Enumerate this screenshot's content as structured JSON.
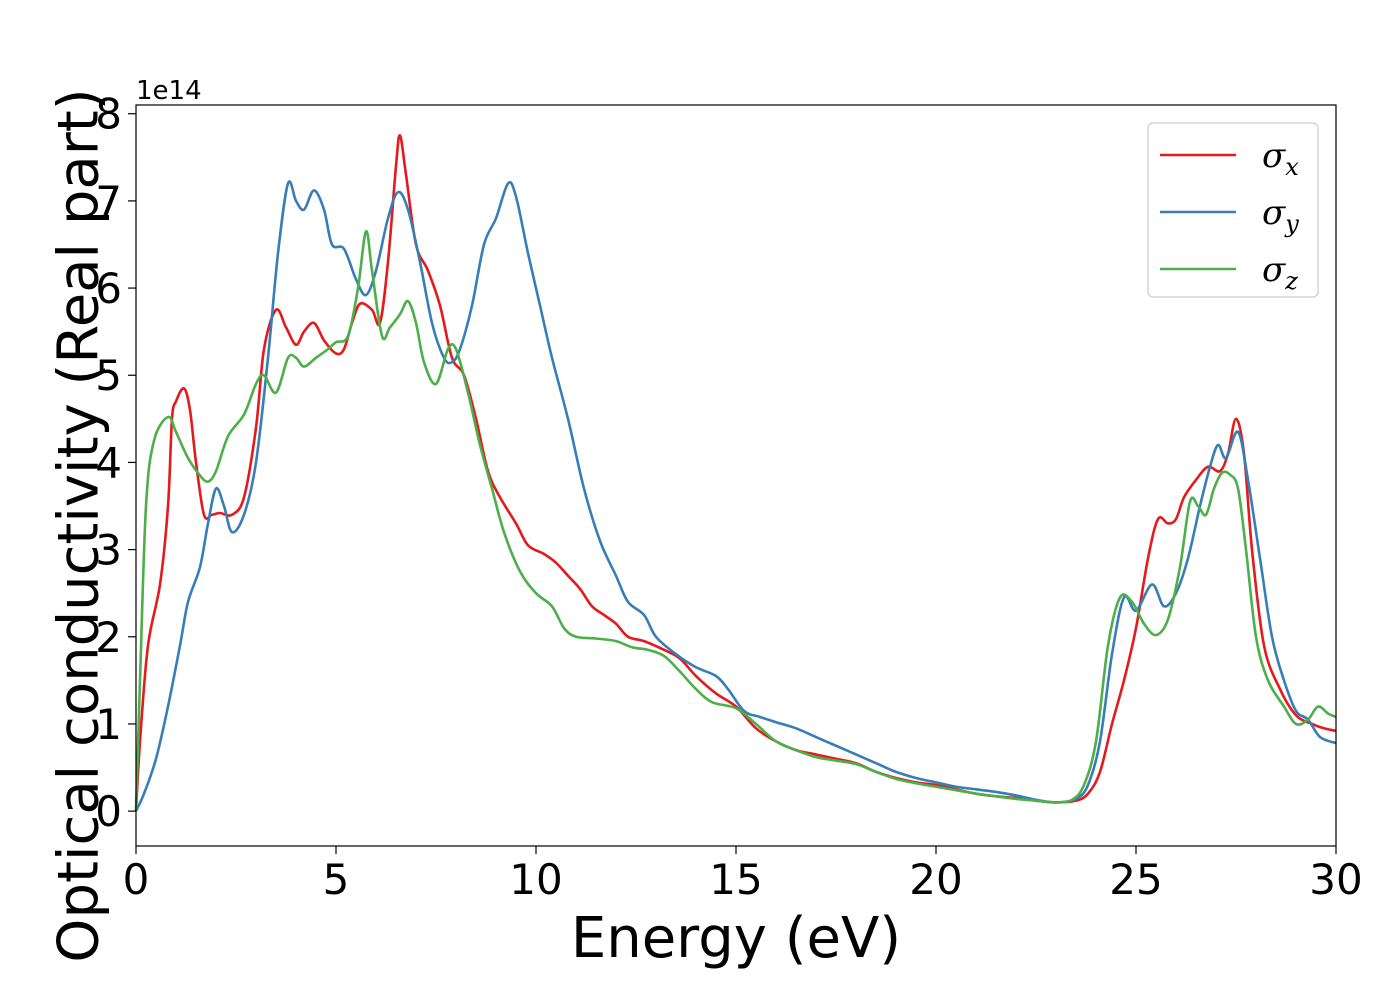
{
  "chart_data": {
    "type": "line",
    "xlabel": "Energy (eV)",
    "ylabel": "Optical conductivity (Real part)",
    "y_offset_text": "1e14",
    "xlim": [
      0,
      30
    ],
    "ylim": [
      -0.4,
      8.1
    ],
    "xticks": [
      0,
      5,
      10,
      15,
      20,
      25,
      30
    ],
    "yticks": [
      0,
      1,
      2,
      3,
      4,
      5,
      6,
      7,
      8
    ],
    "grid": false,
    "legend_position": "top-right",
    "series": [
      {
        "name": "σx",
        "symbol": "σ",
        "subscript": "x",
        "color": "#e41a1c",
        "points": [
          [
            0,
            0
          ],
          [
            0.1,
            0.8
          ],
          [
            0.3,
            1.9
          ],
          [
            0.6,
            2.6
          ],
          [
            0.8,
            3.5
          ],
          [
            0.9,
            4.5
          ],
          [
            1.0,
            4.7
          ],
          [
            1.2,
            4.85
          ],
          [
            1.35,
            4.6
          ],
          [
            1.5,
            4.0
          ],
          [
            1.7,
            3.4
          ],
          [
            1.9,
            3.4
          ],
          [
            2.1,
            3.42
          ],
          [
            2.4,
            3.4
          ],
          [
            2.7,
            3.6
          ],
          [
            3.0,
            4.4
          ],
          [
            3.2,
            5.3
          ],
          [
            3.5,
            5.75
          ],
          [
            3.75,
            5.55
          ],
          [
            4.0,
            5.35
          ],
          [
            4.2,
            5.5
          ],
          [
            4.45,
            5.6
          ],
          [
            4.7,
            5.4
          ],
          [
            5.0,
            5.25
          ],
          [
            5.2,
            5.3
          ],
          [
            5.4,
            5.6
          ],
          [
            5.6,
            5.82
          ],
          [
            5.9,
            5.75
          ],
          [
            6.1,
            5.6
          ],
          [
            6.3,
            6.3
          ],
          [
            6.5,
            7.4
          ],
          [
            6.6,
            7.75
          ],
          [
            6.75,
            7.3
          ],
          [
            7.0,
            6.5
          ],
          [
            7.3,
            6.2
          ],
          [
            7.6,
            5.8
          ],
          [
            7.9,
            5.2
          ],
          [
            8.2,
            5.0
          ],
          [
            8.5,
            4.5
          ],
          [
            8.8,
            3.9
          ],
          [
            9.1,
            3.6
          ],
          [
            9.5,
            3.3
          ],
          [
            9.8,
            3.05
          ],
          [
            10.2,
            2.95
          ],
          [
            10.5,
            2.85
          ],
          [
            10.8,
            2.7
          ],
          [
            11.1,
            2.55
          ],
          [
            11.4,
            2.35
          ],
          [
            11.7,
            2.25
          ],
          [
            12.0,
            2.15
          ],
          [
            12.3,
            2.0
          ],
          [
            12.7,
            1.95
          ],
          [
            13.2,
            1.85
          ],
          [
            13.6,
            1.75
          ],
          [
            14.0,
            1.55
          ],
          [
            14.5,
            1.35
          ],
          [
            15.0,
            1.2
          ],
          [
            15.5,
            0.95
          ],
          [
            16.0,
            0.8
          ],
          [
            16.5,
            0.7
          ],
          [
            17.0,
            0.65
          ],
          [
            17.5,
            0.6
          ],
          [
            18.0,
            0.55
          ],
          [
            18.5,
            0.45
          ],
          [
            19.0,
            0.38
          ],
          [
            19.5,
            0.33
          ],
          [
            20.0,
            0.3
          ],
          [
            20.5,
            0.25
          ],
          [
            21.0,
            0.2
          ],
          [
            21.5,
            0.17
          ],
          [
            22.0,
            0.15
          ],
          [
            22.5,
            0.12
          ],
          [
            23.0,
            0.1
          ],
          [
            23.5,
            0.12
          ],
          [
            23.8,
            0.2
          ],
          [
            24.1,
            0.45
          ],
          [
            24.4,
            1.0
          ],
          [
            24.7,
            1.5
          ],
          [
            25.0,
            2.1
          ],
          [
            25.3,
            2.9
          ],
          [
            25.55,
            3.35
          ],
          [
            25.8,
            3.3
          ],
          [
            26.0,
            3.35
          ],
          [
            26.2,
            3.6
          ],
          [
            26.5,
            3.8
          ],
          [
            26.8,
            3.95
          ],
          [
            27.1,
            3.9
          ],
          [
            27.3,
            4.1
          ],
          [
            27.5,
            4.5
          ],
          [
            27.7,
            4.1
          ],
          [
            27.9,
            3.0
          ],
          [
            28.2,
            1.9
          ],
          [
            28.6,
            1.4
          ],
          [
            29.0,
            1.1
          ],
          [
            29.4,
            1.0
          ],
          [
            29.7,
            0.95
          ],
          [
            30.0,
            0.92
          ]
        ]
      },
      {
        "name": "σy",
        "symbol": "σ",
        "subscript": "y",
        "color": "#377eb8",
        "points": [
          [
            0,
            0
          ],
          [
            0.2,
            0.2
          ],
          [
            0.5,
            0.6
          ],
          [
            0.8,
            1.2
          ],
          [
            1.1,
            1.9
          ],
          [
            1.3,
            2.4
          ],
          [
            1.6,
            2.8
          ],
          [
            1.8,
            3.3
          ],
          [
            2.0,
            3.7
          ],
          [
            2.2,
            3.5
          ],
          [
            2.4,
            3.2
          ],
          [
            2.7,
            3.4
          ],
          [
            3.0,
            4.0
          ],
          [
            3.3,
            5.2
          ],
          [
            3.55,
            6.4
          ],
          [
            3.8,
            7.2
          ],
          [
            4.0,
            7.0
          ],
          [
            4.2,
            6.9
          ],
          [
            4.45,
            7.12
          ],
          [
            4.7,
            6.9
          ],
          [
            4.9,
            6.5
          ],
          [
            5.2,
            6.45
          ],
          [
            5.5,
            6.1
          ],
          [
            5.75,
            5.92
          ],
          [
            6.0,
            6.2
          ],
          [
            6.3,
            6.8
          ],
          [
            6.55,
            7.1
          ],
          [
            6.8,
            6.9
          ],
          [
            7.1,
            6.3
          ],
          [
            7.4,
            5.6
          ],
          [
            7.7,
            5.2
          ],
          [
            7.9,
            5.15
          ],
          [
            8.1,
            5.3
          ],
          [
            8.4,
            5.8
          ],
          [
            8.7,
            6.5
          ],
          [
            9.0,
            6.8
          ],
          [
            9.3,
            7.2
          ],
          [
            9.5,
            7.05
          ],
          [
            9.8,
            6.4
          ],
          [
            10.1,
            5.8
          ],
          [
            10.4,
            5.2
          ],
          [
            10.8,
            4.5
          ],
          [
            11.2,
            3.7
          ],
          [
            11.6,
            3.1
          ],
          [
            12.0,
            2.7
          ],
          [
            12.3,
            2.4
          ],
          [
            12.7,
            2.25
          ],
          [
            13.0,
            2.0
          ],
          [
            13.5,
            1.8
          ],
          [
            14.0,
            1.65
          ],
          [
            14.5,
            1.55
          ],
          [
            14.8,
            1.4
          ],
          [
            15.2,
            1.15
          ],
          [
            15.6,
            1.08
          ],
          [
            16.0,
            1.02
          ],
          [
            16.5,
            0.95
          ],
          [
            17.0,
            0.85
          ],
          [
            17.5,
            0.75
          ],
          [
            18.0,
            0.65
          ],
          [
            18.5,
            0.55
          ],
          [
            19.0,
            0.45
          ],
          [
            19.5,
            0.38
          ],
          [
            20.0,
            0.33
          ],
          [
            20.5,
            0.28
          ],
          [
            21.0,
            0.25
          ],
          [
            21.5,
            0.22
          ],
          [
            22.0,
            0.18
          ],
          [
            22.5,
            0.13
          ],
          [
            23.0,
            0.1
          ],
          [
            23.5,
            0.14
          ],
          [
            23.8,
            0.3
          ],
          [
            24.1,
            0.8
          ],
          [
            24.4,
            1.8
          ],
          [
            24.7,
            2.45
          ],
          [
            25.0,
            2.3
          ],
          [
            25.4,
            2.6
          ],
          [
            25.7,
            2.35
          ],
          [
            26.0,
            2.5
          ],
          [
            26.3,
            2.9
          ],
          [
            26.6,
            3.5
          ],
          [
            26.85,
            3.95
          ],
          [
            27.05,
            4.2
          ],
          [
            27.25,
            4.05
          ],
          [
            27.55,
            4.35
          ],
          [
            27.8,
            3.8
          ],
          [
            28.1,
            2.9
          ],
          [
            28.4,
            2.0
          ],
          [
            28.7,
            1.5
          ],
          [
            29.0,
            1.15
          ],
          [
            29.3,
            1.05
          ],
          [
            29.6,
            0.85
          ],
          [
            30.0,
            0.78
          ]
        ]
      },
      {
        "name": "σz",
        "symbol": "σ",
        "subscript": "z",
        "color": "#4daf4a",
        "points": [
          [
            0,
            0
          ],
          [
            0.1,
            1.5
          ],
          [
            0.25,
            3.5
          ],
          [
            0.45,
            4.25
          ],
          [
            0.8,
            4.52
          ],
          [
            1.0,
            4.35
          ],
          [
            1.3,
            4.05
          ],
          [
            1.6,
            3.85
          ],
          [
            1.8,
            3.78
          ],
          [
            2.0,
            3.9
          ],
          [
            2.3,
            4.3
          ],
          [
            2.7,
            4.55
          ],
          [
            3.0,
            4.9
          ],
          [
            3.2,
            5.0
          ],
          [
            3.5,
            4.8
          ],
          [
            3.8,
            5.2
          ],
          [
            4.0,
            5.2
          ],
          [
            4.2,
            5.1
          ],
          [
            4.5,
            5.2
          ],
          [
            4.8,
            5.3
          ],
          [
            5.0,
            5.38
          ],
          [
            5.3,
            5.45
          ],
          [
            5.55,
            6.0
          ],
          [
            5.75,
            6.65
          ],
          [
            5.9,
            6.2
          ],
          [
            6.15,
            5.45
          ],
          [
            6.35,
            5.55
          ],
          [
            6.6,
            5.7
          ],
          [
            6.8,
            5.85
          ],
          [
            7.0,
            5.6
          ],
          [
            7.2,
            5.15
          ],
          [
            7.5,
            4.9
          ],
          [
            7.8,
            5.3
          ],
          [
            8.0,
            5.3
          ],
          [
            8.3,
            4.8
          ],
          [
            8.6,
            4.2
          ],
          [
            8.9,
            3.7
          ],
          [
            9.2,
            3.2
          ],
          [
            9.6,
            2.75
          ],
          [
            10.0,
            2.5
          ],
          [
            10.4,
            2.35
          ],
          [
            10.7,
            2.1
          ],
          [
            11.0,
            2.0
          ],
          [
            11.5,
            1.98
          ],
          [
            12.0,
            1.95
          ],
          [
            12.4,
            1.88
          ],
          [
            12.8,
            1.85
          ],
          [
            13.2,
            1.78
          ],
          [
            13.6,
            1.6
          ],
          [
            14.0,
            1.4
          ],
          [
            14.4,
            1.25
          ],
          [
            15.0,
            1.18
          ],
          [
            15.5,
            1.0
          ],
          [
            16.0,
            0.8
          ],
          [
            16.5,
            0.7
          ],
          [
            17.0,
            0.62
          ],
          [
            17.5,
            0.58
          ],
          [
            18.0,
            0.54
          ],
          [
            18.5,
            0.45
          ],
          [
            19.0,
            0.37
          ],
          [
            19.5,
            0.32
          ],
          [
            20.0,
            0.28
          ],
          [
            20.5,
            0.24
          ],
          [
            21.0,
            0.2
          ],
          [
            21.5,
            0.17
          ],
          [
            22.0,
            0.14
          ],
          [
            22.5,
            0.12
          ],
          [
            23.0,
            0.1
          ],
          [
            23.4,
            0.13
          ],
          [
            23.7,
            0.3
          ],
          [
            24.0,
            0.8
          ],
          [
            24.3,
            1.9
          ],
          [
            24.6,
            2.45
          ],
          [
            24.9,
            2.4
          ],
          [
            25.2,
            2.15
          ],
          [
            25.5,
            2.02
          ],
          [
            25.8,
            2.2
          ],
          [
            26.1,
            2.8
          ],
          [
            26.35,
            3.55
          ],
          [
            26.55,
            3.5
          ],
          [
            26.75,
            3.4
          ],
          [
            26.95,
            3.7
          ],
          [
            27.15,
            3.88
          ],
          [
            27.35,
            3.86
          ],
          [
            27.55,
            3.7
          ],
          [
            27.75,
            3.0
          ],
          [
            28.0,
            2.0
          ],
          [
            28.3,
            1.5
          ],
          [
            28.7,
            1.2
          ],
          [
            29.0,
            1.0
          ],
          [
            29.3,
            1.05
          ],
          [
            29.55,
            1.2
          ],
          [
            29.8,
            1.12
          ],
          [
            30.0,
            1.08
          ]
        ]
      }
    ]
  }
}
